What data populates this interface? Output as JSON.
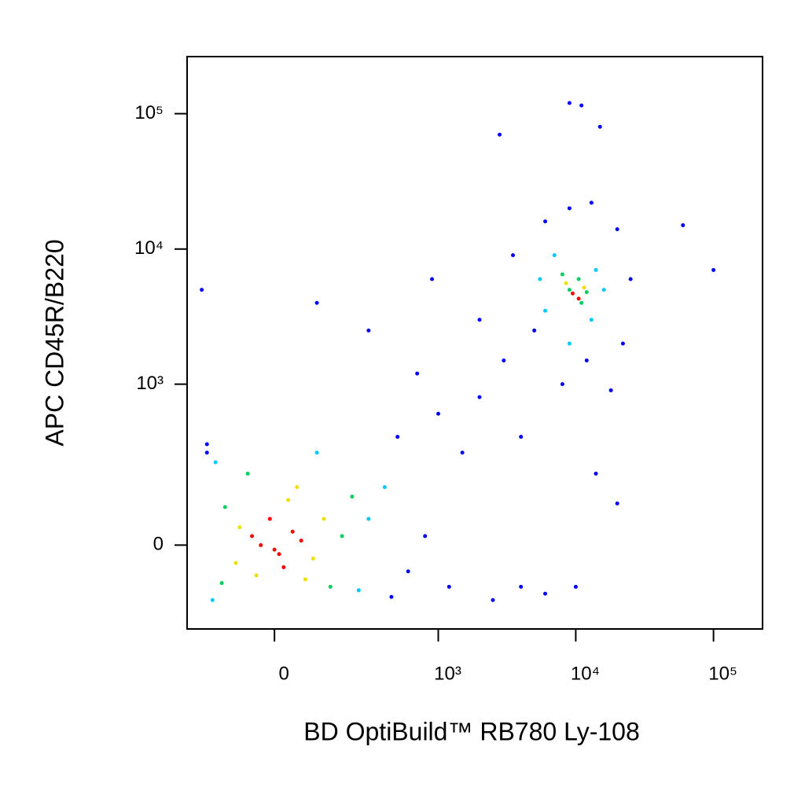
{
  "chart_data": {
    "type": "scatter",
    "xlabel": "BD OptiBuild™ RB780 Ly-108",
    "ylabel": "APC CD45R/B220",
    "xscale": "logicle",
    "yscale": "logicle",
    "xlim": [
      -265,
      227000
    ],
    "ylim": [
      -255,
      264000
    ],
    "xticks": [
      0,
      {
        "value": 1000,
        "label": "10³"
      },
      {
        "value": 10000,
        "label": "10⁴"
      },
      {
        "value": 100000,
        "label": "10⁵"
      }
    ],
    "yticks": [
      0,
      {
        "value": 1000,
        "label": "10³"
      },
      {
        "value": 10000,
        "label": "10⁴"
      },
      {
        "value": 100000,
        "label": "10⁵"
      }
    ],
    "legend": false,
    "series": [
      {
        "color": "#0000ff",
        "x": [
          600,
          800,
          1200,
          500,
          1500,
          2000,
          700,
          3000,
          4000,
          6000,
          10000,
          14000,
          20000,
          300,
          100,
          -200,
          900,
          2000,
          3500,
          6000,
          9000,
          13000,
          20000,
          25000,
          22000,
          18000,
          5000,
          8000,
          12000,
          60000,
          100000,
          4000,
          2500,
          -180,
          450,
          9000,
          11000,
          15000,
          2800,
          -180,
          1000
        ],
        "y": [
          -60,
          20,
          -100,
          400,
          300,
          800,
          1200,
          1500,
          400,
          -120,
          -100,
          200,
          100,
          2500,
          4000,
          5000,
          6000,
          3000,
          9000,
          16000,
          20000,
          22000,
          14000,
          6000,
          2000,
          900,
          2500,
          1000,
          1500,
          15000,
          7000,
          -100,
          -140,
          300,
          -130,
          120000,
          115000,
          80000,
          70000,
          350,
          600
        ]
      },
      {
        "color": "#00c8ff",
        "x": [
          -150,
          300,
          250,
          -160,
          100,
          400,
          6000,
          14000,
          7000,
          13000,
          9000,
          16000,
          5500
        ],
        "y": [
          250,
          60,
          -110,
          -140,
          300,
          150,
          3500,
          7000,
          9000,
          3000,
          2000,
          5000,
          6000
        ]
      },
      {
        "color": "#00d060",
        "x": [
          -120,
          180,
          -60,
          140,
          -130,
          220,
          9000,
          11000,
          8000,
          10500,
          12000
        ],
        "y": [
          90,
          20,
          200,
          -100,
          -90,
          120,
          5000,
          4000,
          6500,
          6000,
          4800
        ]
      },
      {
        "color": "#f0e000",
        "x": [
          -80,
          90,
          30,
          -40,
          120,
          70,
          -90,
          50,
          8500,
          11500
        ],
        "y": [
          40,
          -30,
          110,
          -70,
          60,
          -80,
          -40,
          150,
          5600,
          5200
        ]
      },
      {
        "color": "#ff0000",
        "x": [
          -30,
          10,
          40,
          -10,
          20,
          60,
          -50,
          0,
          9500,
          10500
        ],
        "y": [
          0,
          -20,
          30,
          60,
          -50,
          10,
          20,
          -10,
          4700,
          4300
        ]
      }
    ]
  }
}
